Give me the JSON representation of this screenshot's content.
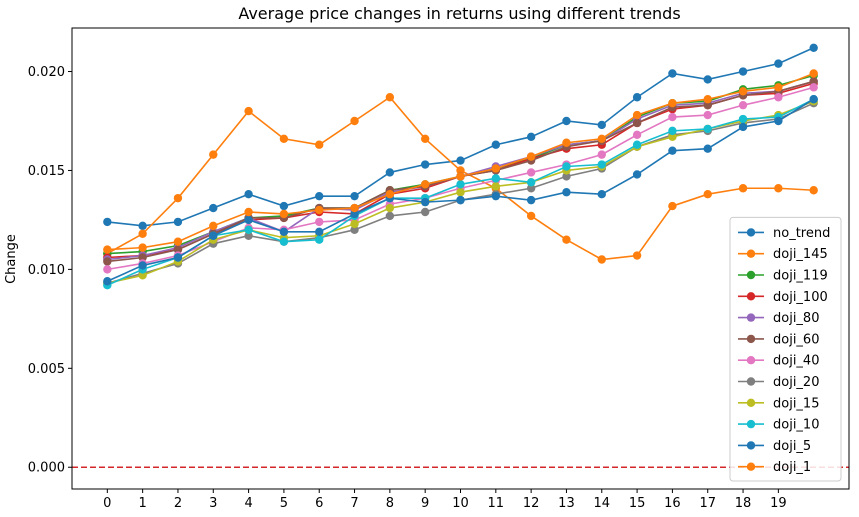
{
  "chart_data": {
    "type": "line",
    "title": "Average price changes in returns using different trends",
    "xlabel": "",
    "ylabel": "Change",
    "x": [
      0,
      1,
      2,
      3,
      4,
      5,
      6,
      7,
      8,
      9,
      10,
      11,
      12,
      13,
      14,
      15,
      16,
      17,
      18,
      19,
      20
    ],
    "x_tick_labels": [
      "0",
      "1",
      "2",
      "3",
      "4",
      "5",
      "6",
      "7",
      "8",
      "9",
      "10",
      "11",
      "12",
      "13",
      "14",
      "15",
      "16",
      "17",
      "18",
      "19"
    ],
    "y_ticks": [
      0.0,
      0.005,
      0.01,
      0.015,
      0.02
    ],
    "y_tick_labels": [
      "0.000",
      "0.005",
      "0.010",
      "0.015",
      "0.020"
    ],
    "xlim": [
      -1,
      21
    ],
    "ylim": [
      -0.0011,
      0.0222
    ],
    "grid": false,
    "legend_position": "lower-right",
    "reference_line": {
      "y": 0.0,
      "color": "#d62728",
      "style": "dashed"
    },
    "series": [
      {
        "name": "no_trend",
        "color": "#1f77b4",
        "values": [
          0.0124,
          0.0122,
          0.0124,
          0.0131,
          0.0138,
          0.0132,
          0.0137,
          0.0137,
          0.0149,
          0.0153,
          0.0155,
          0.0163,
          0.0167,
          0.0175,
          0.0173,
          0.0187,
          0.0199,
          0.0196,
          0.02,
          0.0204,
          0.0212
        ]
      },
      {
        "name": "doji_145",
        "color": "#ff7f0e",
        "values": [
          0.0108,
          0.0118,
          0.0136,
          0.0158,
          0.018,
          0.0166,
          0.0163,
          0.0175,
          0.0187,
          0.0166,
          0.015,
          0.0141,
          0.0127,
          0.0115,
          0.0105,
          0.0107,
          0.0132,
          0.0138,
          0.0141,
          0.0141,
          0.014
        ]
      },
      {
        "name": "doji_119",
        "color": "#2ca02c",
        "values": [
          0.0108,
          0.0109,
          0.0112,
          0.0119,
          0.0126,
          0.0127,
          0.0131,
          0.0131,
          0.014,
          0.0143,
          0.0147,
          0.0151,
          0.0156,
          0.0163,
          0.0165,
          0.0177,
          0.0184,
          0.0185,
          0.0191,
          0.0193,
          0.0198
        ]
      },
      {
        "name": "doji_100",
        "color": "#d62728",
        "values": [
          0.0106,
          0.0107,
          0.011,
          0.0118,
          0.0125,
          0.0126,
          0.0129,
          0.0128,
          0.0138,
          0.0141,
          0.0147,
          0.015,
          0.0156,
          0.0161,
          0.0163,
          0.0174,
          0.0181,
          0.0183,
          0.0188,
          0.0189,
          0.0194
        ]
      },
      {
        "name": "doji_80",
        "color": "#9467bd",
        "values": [
          0.0105,
          0.0107,
          0.0111,
          0.0119,
          0.0126,
          0.0119,
          0.0131,
          0.013,
          0.0139,
          0.0142,
          0.0147,
          0.0152,
          0.0157,
          0.0163,
          0.0165,
          0.0176,
          0.0183,
          0.0184,
          0.0189,
          0.019,
          0.0195
        ]
      },
      {
        "name": "doji_60",
        "color": "#8c564b",
        "values": [
          0.0104,
          0.0106,
          0.011,
          0.0118,
          0.0126,
          0.0126,
          0.0131,
          0.0131,
          0.014,
          0.0142,
          0.0147,
          0.015,
          0.0155,
          0.0162,
          0.0165,
          0.0174,
          0.0182,
          0.0183,
          0.0188,
          0.019,
          0.0195
        ]
      },
      {
        "name": "doji_40",
        "color": "#e377c2",
        "values": [
          0.01,
          0.0103,
          0.0107,
          0.0114,
          0.0121,
          0.012,
          0.0124,
          0.0125,
          0.0133,
          0.0136,
          0.0141,
          0.0145,
          0.0149,
          0.0153,
          0.0158,
          0.0168,
          0.0177,
          0.0178,
          0.0183,
          0.0187,
          0.0192
        ]
      },
      {
        "name": "doji_20",
        "color": "#7f7f7f",
        "values": [
          0.0093,
          0.0098,
          0.0103,
          0.0113,
          0.0117,
          0.0114,
          0.0116,
          0.012,
          0.0127,
          0.0129,
          0.0135,
          0.0138,
          0.0141,
          0.0147,
          0.0151,
          0.0162,
          0.0168,
          0.017,
          0.0174,
          0.0176,
          0.0184
        ]
      },
      {
        "name": "doji_15",
        "color": "#bcbd22",
        "values": [
          0.0093,
          0.0097,
          0.0104,
          0.0115,
          0.012,
          0.0116,
          0.0117,
          0.0123,
          0.0131,
          0.0134,
          0.0139,
          0.0142,
          0.0144,
          0.015,
          0.0152,
          0.0162,
          0.0167,
          0.0171,
          0.0175,
          0.0178,
          0.0185
        ]
      },
      {
        "name": "doji_10",
        "color": "#17becf",
        "values": [
          0.0092,
          0.01,
          0.0106,
          0.0117,
          0.012,
          0.0114,
          0.0115,
          0.0127,
          0.0136,
          0.0136,
          0.0143,
          0.0146,
          0.0144,
          0.0152,
          0.0153,
          0.0163,
          0.017,
          0.0171,
          0.0176,
          0.0177,
          0.0186
        ]
      },
      {
        "name": "doji_5",
        "color": "#1f77b4",
        "values": [
          0.0094,
          0.0102,
          0.0106,
          0.0117,
          0.0125,
          0.0119,
          0.0119,
          0.0128,
          0.0136,
          0.0134,
          0.0135,
          0.0137,
          0.0135,
          0.0139,
          0.0138,
          0.0148,
          0.016,
          0.0161,
          0.0172,
          0.0175,
          0.0186
        ]
      },
      {
        "name": "doji_1",
        "color": "#ff7f0e",
        "values": [
          0.011,
          0.0111,
          0.0114,
          0.0122,
          0.0129,
          0.0128,
          0.013,
          0.0131,
          0.0138,
          0.0143,
          0.0147,
          0.0151,
          0.0157,
          0.0164,
          0.0166,
          0.0178,
          0.0184,
          0.0186,
          0.019,
          0.0192,
          0.0199
        ]
      }
    ]
  }
}
